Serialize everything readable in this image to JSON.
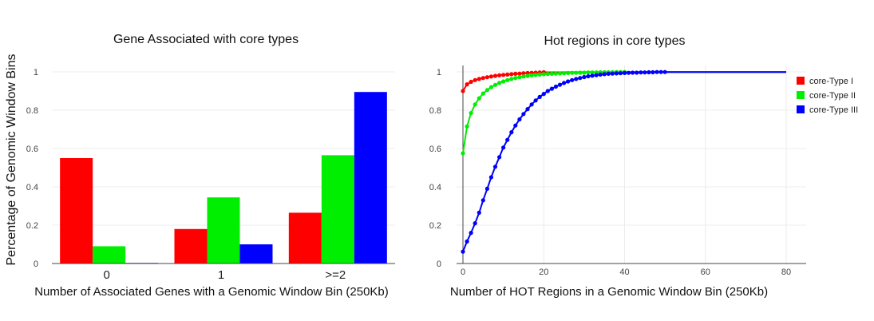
{
  "chart_data": [
    {
      "type": "bar",
      "title": "Gene Associated with core types",
      "xlabel": "Number of Associated Genes with a Genomic Window Bin (250Kb)",
      "ylabel": "Percentage of Genomic Window Bins",
      "categories": [
        "0",
        "1",
        ">=2"
      ],
      "yticks": [
        "0",
        "0.2",
        "0.4",
        "0.6",
        "0.8",
        "1"
      ],
      "ylim": [
        0,
        1
      ],
      "grid": true,
      "series": [
        {
          "values": [
            0.55,
            0.18,
            0.265
          ],
          "color": "#ff0000"
        },
        {
          "values": [
            0.09,
            0.345,
            0.565
          ],
          "color": "#00ee00"
        },
        {
          "values": [
            0.003,
            0.1,
            0.895
          ],
          "color": "#0000ff"
        }
      ]
    },
    {
      "type": "line",
      "title": "Hot regions in core types",
      "xlabel": "Number of HOT Regions in a Genomic Window Bin (250Kb)",
      "xlim": [
        0,
        80
      ],
      "ylim": [
        0,
        1
      ],
      "xticks": [
        "0",
        "20",
        "40",
        "60",
        "80"
      ],
      "yticks": [
        "0",
        "0.2",
        "0.4",
        "0.6",
        "0.8",
        "1"
      ],
      "legend_position": "top-right",
      "grid": true,
      "series": [
        {
          "name": "core-Type I",
          "color": "#ff0000",
          "x": [
            0,
            1,
            2,
            3,
            4,
            5,
            6,
            7,
            8,
            9,
            10,
            11,
            12,
            13,
            14,
            15,
            16,
            17,
            18,
            19,
            20
          ],
          "y": [
            0.9,
            0.935,
            0.948,
            0.957,
            0.963,
            0.968,
            0.972,
            0.976,
            0.979,
            0.982,
            0.984,
            0.986,
            0.988,
            0.99,
            0.991,
            0.993,
            0.994,
            0.995,
            0.996,
            0.997,
            0.998
          ]
        },
        {
          "name": "core-Type II",
          "color": "#00ee00",
          "x": [
            0,
            1,
            2,
            3,
            4,
            5,
            6,
            7,
            8,
            9,
            10,
            11,
            12,
            13,
            14,
            15,
            16,
            17,
            18,
            19,
            20,
            21,
            22,
            23,
            24,
            25,
            26,
            27,
            28,
            29,
            30,
            31,
            32,
            33,
            34,
            35,
            36,
            37,
            38,
            39,
            40
          ],
          "y": [
            0.575,
            0.715,
            0.785,
            0.83,
            0.862,
            0.887,
            0.905,
            0.92,
            0.932,
            0.942,
            0.95,
            0.957,
            0.963,
            0.968,
            0.972,
            0.976,
            0.979,
            0.982,
            0.984,
            0.986,
            0.988,
            0.989,
            0.99,
            0.991,
            0.992,
            0.993,
            0.994,
            0.995,
            0.995,
            0.996,
            0.996,
            0.997,
            0.997,
            0.997,
            0.998,
            0.998,
            0.998,
            0.998,
            0.999,
            0.999,
            0.999
          ]
        },
        {
          "name": "core-Type III",
          "color": "#0000ff",
          "x": [
            0,
            1,
            2,
            3,
            4,
            5,
            6,
            7,
            8,
            9,
            10,
            11,
            12,
            13,
            14,
            15,
            16,
            17,
            18,
            19,
            20,
            21,
            22,
            23,
            24,
            25,
            26,
            27,
            28,
            29,
            30,
            31,
            32,
            33,
            34,
            35,
            36,
            37,
            38,
            39,
            40,
            41,
            42,
            43,
            44,
            45,
            46,
            47,
            48,
            49,
            50
          ],
          "y": [
            0.062,
            0.115,
            0.16,
            0.21,
            0.265,
            0.33,
            0.39,
            0.45,
            0.505,
            0.555,
            0.605,
            0.645,
            0.685,
            0.72,
            0.752,
            0.78,
            0.806,
            0.83,
            0.851,
            0.869,
            0.885,
            0.9,
            0.912,
            0.923,
            0.933,
            0.942,
            0.95,
            0.957,
            0.963,
            0.968,
            0.973,
            0.977,
            0.98,
            0.983,
            0.986,
            0.988,
            0.99,
            0.991,
            0.992,
            0.993,
            0.994,
            0.995,
            0.996,
            0.996,
            0.997,
            0.997,
            0.998,
            0.998,
            0.999,
            0.999,
            0.999
          ]
        }
      ]
    }
  ]
}
